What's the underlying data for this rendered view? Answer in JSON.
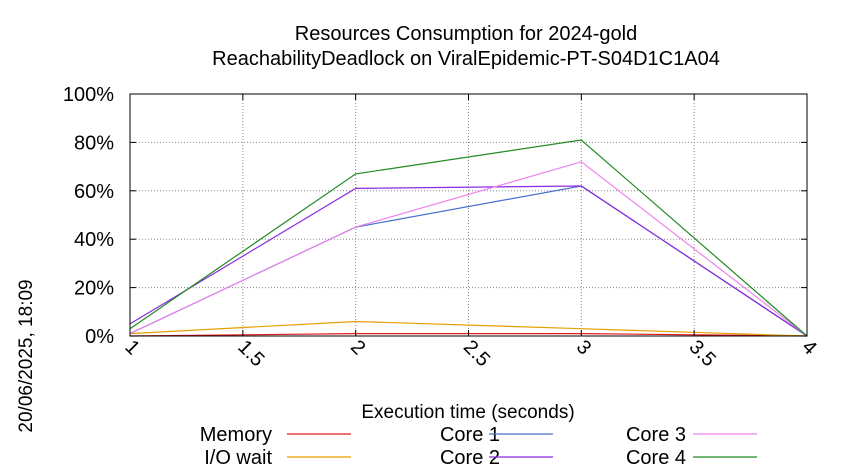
{
  "chart_data": {
    "type": "line",
    "title": "Resources Consumption for 2024-gold",
    "subtitle": "ReachabilityDeadlock on ViralEpidemic-PT-S04D1C1A04",
    "xlabel": "Execution time (seconds)",
    "ylabel": "",
    "side_label": "20/06/2025, 18:09",
    "xlim": [
      1,
      4
    ],
    "ylim": [
      0,
      100
    ],
    "x_ticks": [
      1,
      1.5,
      2,
      2.5,
      3,
      3.5,
      4
    ],
    "x_tick_labels": [
      "1",
      "1.5",
      "2",
      "2.5",
      "3",
      "3.5",
      "4"
    ],
    "y_ticks": [
      0,
      20,
      40,
      60,
      80,
      100
    ],
    "y_tick_labels": [
      "0%",
      "20%",
      "40%",
      "60%",
      "80%",
      "100%"
    ],
    "grid": true,
    "legend_position": "bottom",
    "x": [
      1,
      2,
      3,
      4
    ],
    "series": [
      {
        "name": "Memory",
        "color": "#e41a1c",
        "values": [
          0,
          1,
          1,
          0
        ]
      },
      {
        "name": "I/O wait",
        "color": "#e69f00",
        "values": [
          1,
          6,
          3,
          0
        ]
      },
      {
        "name": "Core 1",
        "color": "#4a6fd0",
        "values": [
          1,
          45,
          62,
          0
        ]
      },
      {
        "name": "Core 2",
        "color": "#8a2be2",
        "values": [
          5,
          61,
          62,
          0
        ]
      },
      {
        "name": "Core 3",
        "color": "#ee82ee",
        "values": [
          1,
          45,
          72,
          0
        ]
      },
      {
        "name": "Core 4",
        "color": "#228b22",
        "values": [
          3,
          67,
          81,
          0
        ]
      }
    ]
  }
}
